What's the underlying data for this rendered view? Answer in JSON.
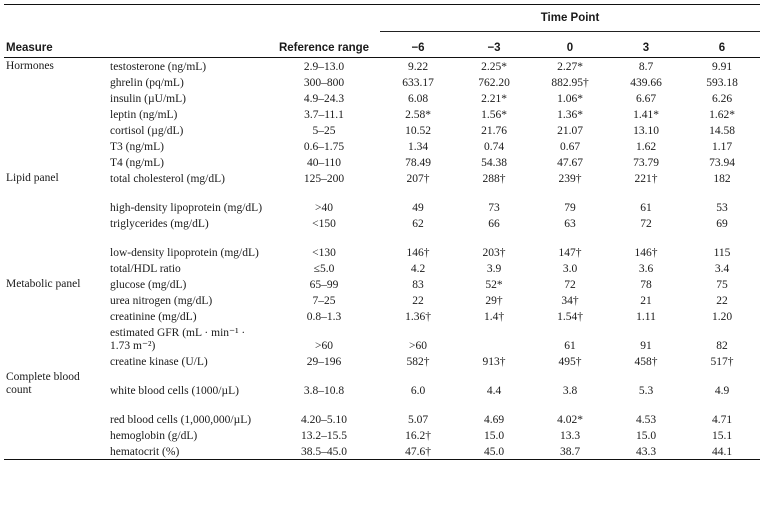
{
  "header": {
    "measure": "Measure",
    "reference": "Reference range",
    "time_point": "Time Point",
    "times": [
      "−6",
      "−3",
      "0",
      "3",
      "6"
    ]
  },
  "groups": [
    {
      "name": "Hormones",
      "rows": [
        {
          "measure": "testosterone (ng/mL)",
          "ref": "2.9–13.0",
          "vals": [
            "9.22",
            "2.25*",
            "2.27*",
            "8.7",
            "9.91"
          ]
        },
        {
          "measure": "ghrelin (pq/mL)",
          "ref": "300–800",
          "vals": [
            "633.17",
            "762.20",
            "882.95†",
            "439.66",
            "593.18"
          ]
        },
        {
          "measure": "insulin (µU/mL)",
          "ref": "4.9–24.3",
          "vals": [
            "6.08",
            "2.21*",
            "1.06*",
            "6.67",
            "6.26"
          ]
        },
        {
          "measure": "leptin (ng/mL)",
          "ref": "3.7–11.1",
          "vals": [
            "2.58*",
            "1.56*",
            "1.36*",
            "1.41*",
            "1.62*"
          ]
        },
        {
          "measure": "cortisol (µg/dL)",
          "ref": "5–25",
          "vals": [
            "10.52",
            "21.76",
            "21.07",
            "13.10",
            "14.58"
          ]
        },
        {
          "measure": "T3 (ng/mL)",
          "ref": "0.6–1.75",
          "vals": [
            "1.34",
            "0.74",
            "0.67",
            "1.62",
            "1.17"
          ]
        },
        {
          "measure": "T4 (ng/mL)",
          "ref": "40–110",
          "vals": [
            "78.49",
            "54.38",
            "47.67",
            "73.79",
            "73.94"
          ]
        }
      ]
    },
    {
      "name": "Lipid panel",
      "rows": [
        {
          "measure": "total cholesterol (mg/dL)",
          "ref": "125–200",
          "vals": [
            "207†",
            "288†",
            "239†",
            "221†",
            "182"
          ]
        },
        {
          "measure": "high-density lipoprotein (mg/dL)",
          "ref": ">40",
          "vals": [
            "49",
            "73",
            "79",
            "61",
            "53"
          ],
          "tall": true
        },
        {
          "measure": "triglycerides (mg/dL)",
          "ref": "<150",
          "vals": [
            "62",
            "66",
            "63",
            "72",
            "69"
          ]
        },
        {
          "measure": "low-density lipoprotein (mg/dL)",
          "ref": "<130",
          "vals": [
            "146†",
            "203†",
            "147†",
            "146†",
            "115"
          ],
          "tall": true
        },
        {
          "measure": "total/HDL ratio",
          "ref": "≤5.0",
          "vals": [
            "4.2",
            "3.9",
            "3.0",
            "3.6",
            "3.4"
          ]
        }
      ]
    },
    {
      "name": "Metabolic panel",
      "rows": [
        {
          "measure": "glucose (mg/dL)",
          "ref": "65–99",
          "vals": [
            "83",
            "52*",
            "72",
            "78",
            "75"
          ]
        },
        {
          "measure": "urea nitrogen (mg/dL)",
          "ref": "7–25",
          "vals": [
            "22",
            "29†",
            "34†",
            "21",
            "22"
          ]
        },
        {
          "measure": "creatinine (mg/dL)",
          "ref": "0.8–1.3",
          "vals": [
            "1.36†",
            "1.4†",
            "1.54†",
            "1.11",
            "1.20"
          ]
        },
        {
          "measure": "estimated GFR (mL · min⁻¹ · 1.73 m⁻²)",
          "ref": ">60",
          "vals": [
            ">60",
            "",
            "61",
            "91",
            "82"
          ],
          "tall": true
        },
        {
          "measure": "creatine kinase (U/L)",
          "ref": "29–196",
          "vals": [
            "582†",
            "913†",
            "495†",
            "458†",
            "517†"
          ]
        }
      ]
    },
    {
      "name": "Complete blood count",
      "rows": [
        {
          "measure": "white blood cells (1000/µL)",
          "ref": "3.8–10.8",
          "vals": [
            "6.0",
            "4.4",
            "3.8",
            "5.3",
            "4.9"
          ],
          "tall": true
        },
        {
          "measure": "red blood cells (1,000,000/µL)",
          "ref": "4.20–5.10",
          "vals": [
            "5.07",
            "4.69",
            "4.02*",
            "4.53",
            "4.71"
          ],
          "tall": true
        },
        {
          "measure": "hemoglobin (g/dL)",
          "ref": "13.2–15.5",
          "vals": [
            "16.2†",
            "15.0",
            "13.3",
            "15.0",
            "15.1"
          ]
        },
        {
          "measure": "hematocrit (%)",
          "ref": "38.5–45.0",
          "vals": [
            "47.6†",
            "45.0",
            "38.7",
            "43.3",
            "44.1"
          ]
        }
      ]
    }
  ]
}
